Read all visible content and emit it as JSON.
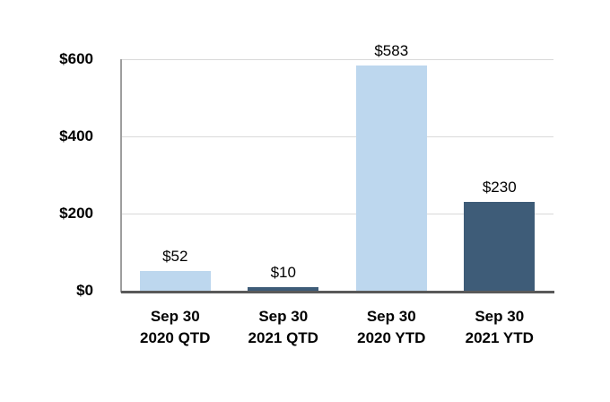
{
  "chart_data": {
    "type": "bar",
    "title": "",
    "xlabel": "",
    "ylabel": "",
    "categories": [
      [
        "Sep 30",
        "2020 QTD"
      ],
      [
        "Sep 30",
        "2021 QTD"
      ],
      [
        "Sep 30",
        "2020 YTD"
      ],
      [
        "Sep 30",
        "2021 YTD"
      ]
    ],
    "values": [
      52,
      10,
      583,
      230
    ],
    "data_labels": [
      "$52",
      "$10",
      "$583",
      "$230"
    ],
    "bar_colors": [
      "#bdd7ee",
      "#3e5c78",
      "#bdd7ee",
      "#3e5c78"
    ],
    "ylim": [
      0,
      600
    ],
    "yticks": [
      0,
      200,
      400,
      600
    ],
    "ytick_labels": [
      "$0",
      "$200",
      "$400",
      "$600"
    ],
    "grid": true,
    "legend": "none",
    "colors": {
      "bar_light": "#bdd7ee",
      "bar_dark": "#3e5c78",
      "gridline": "#d9d9d9",
      "y_axis_line": "#9e9e9e",
      "x_axis_line": "#595959",
      "label_text": "#000000",
      "background": "#ffffff"
    }
  }
}
